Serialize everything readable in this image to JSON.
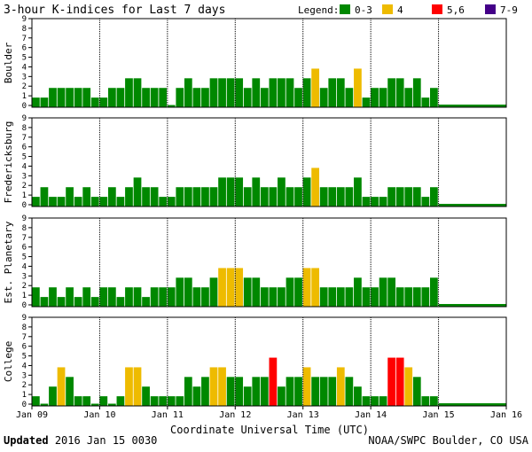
{
  "title": "3-hour K-indices for Last 7 days",
  "legend": {
    "label": "Legend:",
    "items": [
      {
        "label": "0-3",
        "color": "#008800"
      },
      {
        "label": "4",
        "color": "#eebb00"
      },
      {
        "label": "5,6",
        "color": "#ff0000"
      },
      {
        "label": "7-9",
        "color": "#440088"
      }
    ]
  },
  "footer": {
    "updated_label": "Updated",
    "updated_value": "2016 Jan 15 0030",
    "source": "NOAA/SWPC Boulder, CO USA"
  },
  "chart_data": {
    "type": "bar",
    "title": "3-hour K-indices for Last 7 days",
    "xlabel": "Coordinate Universal Time (UTC)",
    "x_ticks": [
      "Jan 09",
      "Jan 10",
      "Jan 11",
      "Jan 12",
      "Jan 13",
      "Jan 14",
      "Jan 15",
      "Jan 16"
    ],
    "bins_per_day": 8,
    "ylim": [
      0,
      9
    ],
    "y_ticks": [
      "0",
      "1",
      "2",
      "3",
      "4",
      "5",
      "6",
      "7",
      "8",
      "9"
    ],
    "color_scale": [
      {
        "range": "0-3",
        "color": "#008800"
      },
      {
        "range": "4",
        "color": "#eebb00"
      },
      {
        "range": "5,6",
        "color": "#ff0000"
      },
      {
        "range": "7-9",
        "color": "#440088"
      }
    ],
    "series": [
      {
        "name": "Boulder",
        "values": [
          1,
          1,
          2,
          2,
          2,
          2,
          2,
          1,
          1,
          2,
          2,
          3,
          3,
          2,
          2,
          2,
          0,
          2,
          3,
          2,
          2,
          3,
          3,
          3,
          3,
          2,
          3,
          2,
          3,
          3,
          3,
          2,
          3,
          4,
          2,
          3,
          3,
          2,
          4,
          1,
          2,
          2,
          3,
          3,
          2,
          3,
          1,
          2
        ]
      },
      {
        "name": "Fredericksburg",
        "values": [
          1,
          2,
          1,
          1,
          2,
          1,
          2,
          1,
          1,
          2,
          1,
          2,
          3,
          2,
          2,
          1,
          1,
          2,
          2,
          2,
          2,
          2,
          3,
          3,
          3,
          2,
          3,
          2,
          2,
          3,
          2,
          2,
          3,
          4,
          2,
          2,
          2,
          2,
          3,
          1,
          1,
          1,
          2,
          2,
          2,
          2,
          1,
          2
        ]
      },
      {
        "name": "Est. Planetary",
        "values": [
          2,
          1,
          2,
          1,
          2,
          1,
          2,
          1,
          2,
          2,
          1,
          2,
          2,
          1,
          2,
          2,
          2,
          3,
          3,
          2,
          2,
          3,
          4,
          4,
          4,
          3,
          3,
          2,
          2,
          2,
          3,
          3,
          4,
          4,
          2,
          2,
          2,
          2,
          3,
          2,
          2,
          3,
          3,
          2,
          2,
          2,
          2,
          3
        ]
      },
      {
        "name": "College",
        "values": [
          1,
          0,
          2,
          4,
          3,
          1,
          1,
          0,
          1,
          0,
          1,
          4,
          4,
          2,
          1,
          1,
          1,
          1,
          3,
          2,
          3,
          4,
          4,
          3,
          3,
          2,
          3,
          3,
          5,
          2,
          3,
          3,
          4,
          3,
          3,
          3,
          4,
          3,
          2,
          1,
          1,
          1,
          5,
          5,
          4,
          3,
          1,
          1
        ]
      }
    ]
  }
}
